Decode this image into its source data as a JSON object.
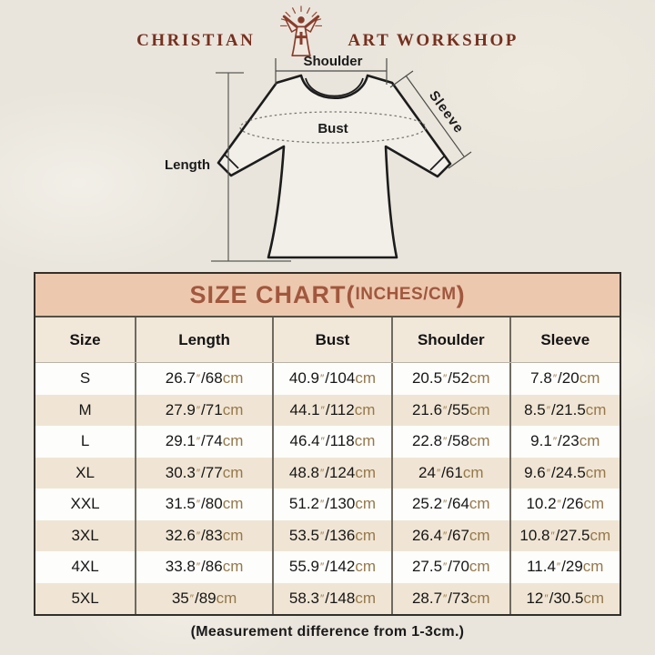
{
  "brand": {
    "name_left": "CHRISTIAN",
    "name_right": "ART WORKSHOP",
    "logo_icon": "jesus-open-arms-rays-icon"
  },
  "diagram": {
    "shoulder_label": "Shoulder",
    "sleeve_label": "Sleeve",
    "bust_label": "Bust",
    "length_label": "Length"
  },
  "size_chart": {
    "title_main": "SIZE CHART(",
    "title_small": "INCHES/CM",
    "title_close": ")",
    "columns": [
      "Size",
      "Length",
      "Bust",
      "Shoulder",
      "Sleeve"
    ],
    "unit_inch": "″",
    "unit_cm": "cm",
    "slash": "/",
    "rows": [
      {
        "size": "S",
        "length": {
          "in": "26.7",
          "cm": "68"
        },
        "bust": {
          "in": "40.9",
          "cm": "104"
        },
        "shoulder": {
          "in": "20.5",
          "cm": "52"
        },
        "sleeve": {
          "in": "7.8",
          "cm": "20"
        }
      },
      {
        "size": "M",
        "length": {
          "in": "27.9",
          "cm": "71"
        },
        "bust": {
          "in": "44.1",
          "cm": "112"
        },
        "shoulder": {
          "in": "21.6",
          "cm": "55"
        },
        "sleeve": {
          "in": "8.5",
          "cm": "21.5"
        }
      },
      {
        "size": "L",
        "length": {
          "in": "29.1",
          "cm": "74"
        },
        "bust": {
          "in": "46.4",
          "cm": "118"
        },
        "shoulder": {
          "in": "22.8",
          "cm": "58"
        },
        "sleeve": {
          "in": "9.1",
          "cm": "23"
        }
      },
      {
        "size": "XL",
        "length": {
          "in": "30.3",
          "cm": "77"
        },
        "bust": {
          "in": "48.8",
          "cm": "124"
        },
        "shoulder": {
          "in": "24",
          "cm": "61"
        },
        "sleeve": {
          "in": "9.6",
          "cm": "24.5"
        }
      },
      {
        "size": "XXL",
        "length": {
          "in": "31.5",
          "cm": "80"
        },
        "bust": {
          "in": "51.2",
          "cm": "130"
        },
        "shoulder": {
          "in": "25.2",
          "cm": "64"
        },
        "sleeve": {
          "in": "10.2",
          "cm": "26"
        }
      },
      {
        "size": "3XL",
        "length": {
          "in": "32.6",
          "cm": "83"
        },
        "bust": {
          "in": "53.5",
          "cm": "136"
        },
        "shoulder": {
          "in": "26.4",
          "cm": "67"
        },
        "sleeve": {
          "in": "10.8",
          "cm": "27.5"
        }
      },
      {
        "size": "4XL",
        "length": {
          "in": "33.8",
          "cm": "86"
        },
        "bust": {
          "in": "55.9",
          "cm": "142"
        },
        "shoulder": {
          "in": "27.5",
          "cm": "70"
        },
        "sleeve": {
          "in": "11.4",
          "cm": "29"
        }
      },
      {
        "size": "5XL",
        "length": {
          "in": "35",
          "cm": "89"
        },
        "bust": {
          "in": "58.3",
          "cm": "148"
        },
        "shoulder": {
          "in": "28.7",
          "cm": "73"
        },
        "sleeve": {
          "in": "12",
          "cm": "30.5"
        }
      }
    ]
  },
  "footnote": "(Measurement difference from 1-3cm.)",
  "colors": {
    "background": "#e9e5dc",
    "brand_text": "#76301f",
    "title_bg": "#ecc9ae",
    "title_text": "#a1573e",
    "header_bg": "#f2e8da",
    "row_alt_bg": "#f0e5d4",
    "row_bg": "#fdfdfb",
    "unit_text": "#96784a",
    "table_border": "#33302b"
  },
  "chart_data": {
    "type": "table",
    "title": "SIZE CHART (INCHES/CM)",
    "columns": [
      "Size",
      "Length",
      "Bust",
      "Shoulder",
      "Sleeve"
    ],
    "rows": [
      [
        "S",
        "26.7\"/68cm",
        "40.9\"/104cm",
        "20.5\"/52cm",
        "7.8\"/20cm"
      ],
      [
        "M",
        "27.9\"/71cm",
        "44.1\"/112cm",
        "21.6\"/55cm",
        "8.5\"/21.5cm"
      ],
      [
        "L",
        "29.1\"/74cm",
        "46.4\"/118cm",
        "22.8\"/58cm",
        "9.1\"/23cm"
      ],
      [
        "XL",
        "30.3\"/77cm",
        "48.8\"/124cm",
        "24\"/61cm",
        "9.6\"/24.5cm"
      ],
      [
        "XXL",
        "31.5\"/80cm",
        "51.2\"/130cm",
        "25.2\"/64cm",
        "10.2\"/26cm"
      ],
      [
        "3XL",
        "32.6\"/83cm",
        "53.5\"/136cm",
        "26.4\"/67cm",
        "10.8\"/27.5cm"
      ],
      [
        "4XL",
        "33.8\"/86cm",
        "55.9\"/142cm",
        "27.5\"/70cm",
        "11.4\"/29cm"
      ],
      [
        "5XL",
        "35\"/89cm",
        "58.3\"/148cm",
        "28.7\"/73cm",
        "12\"/30.5cm"
      ]
    ],
    "footnote": "(Measurement difference from 1-3cm.)"
  }
}
